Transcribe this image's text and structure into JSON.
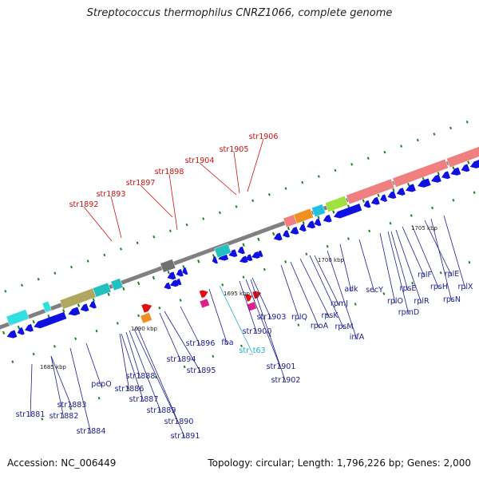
{
  "title": "Streptococcus thermophilus CNRZ1066, complete genome",
  "footer": {
    "accession": "Accession: NC_006449",
    "stats": "Topology: circular; Length: 1,796,226 bp; Genes: 2,000"
  },
  "colors": {
    "backbone": "#808080",
    "gene_forward": "#1010e0",
    "gene_reverse": "#e01010",
    "label_forward": "#202090",
    "label_reverse": "#d01010",
    "label_rna": "#20b0d0",
    "tick_major": "#208020",
    "dotted_ring": "#208020"
  },
  "scale_ticks": [
    "1685 kbp",
    "1690 kbp",
    "1695 kbp",
    "1700 kbp",
    "1705 kbp"
  ],
  "labels_top": [
    "str1892",
    "str1893",
    "str1897",
    "str1898",
    "str1904",
    "str1905",
    "str1906"
  ],
  "labels_bottom": [
    "str1881",
    "str1882",
    "str1883",
    "str1884",
    "pepO",
    "str1886",
    "str1887",
    "str1888",
    "str1889",
    "str1890",
    "str1891",
    "str1894",
    "str1895",
    "str1896",
    "fba",
    "str_t63",
    "str1900",
    "str1901",
    "str1902",
    "str1903",
    "rplQ",
    "rpoA",
    "rpsK",
    "rpsM",
    "rpmJ",
    "infA",
    "adk",
    "secY",
    "rplO",
    "rpmD",
    "rpsE",
    "rplR",
    "rplF",
    "rpsH",
    "rplE",
    "rpsN",
    "rplX"
  ]
}
